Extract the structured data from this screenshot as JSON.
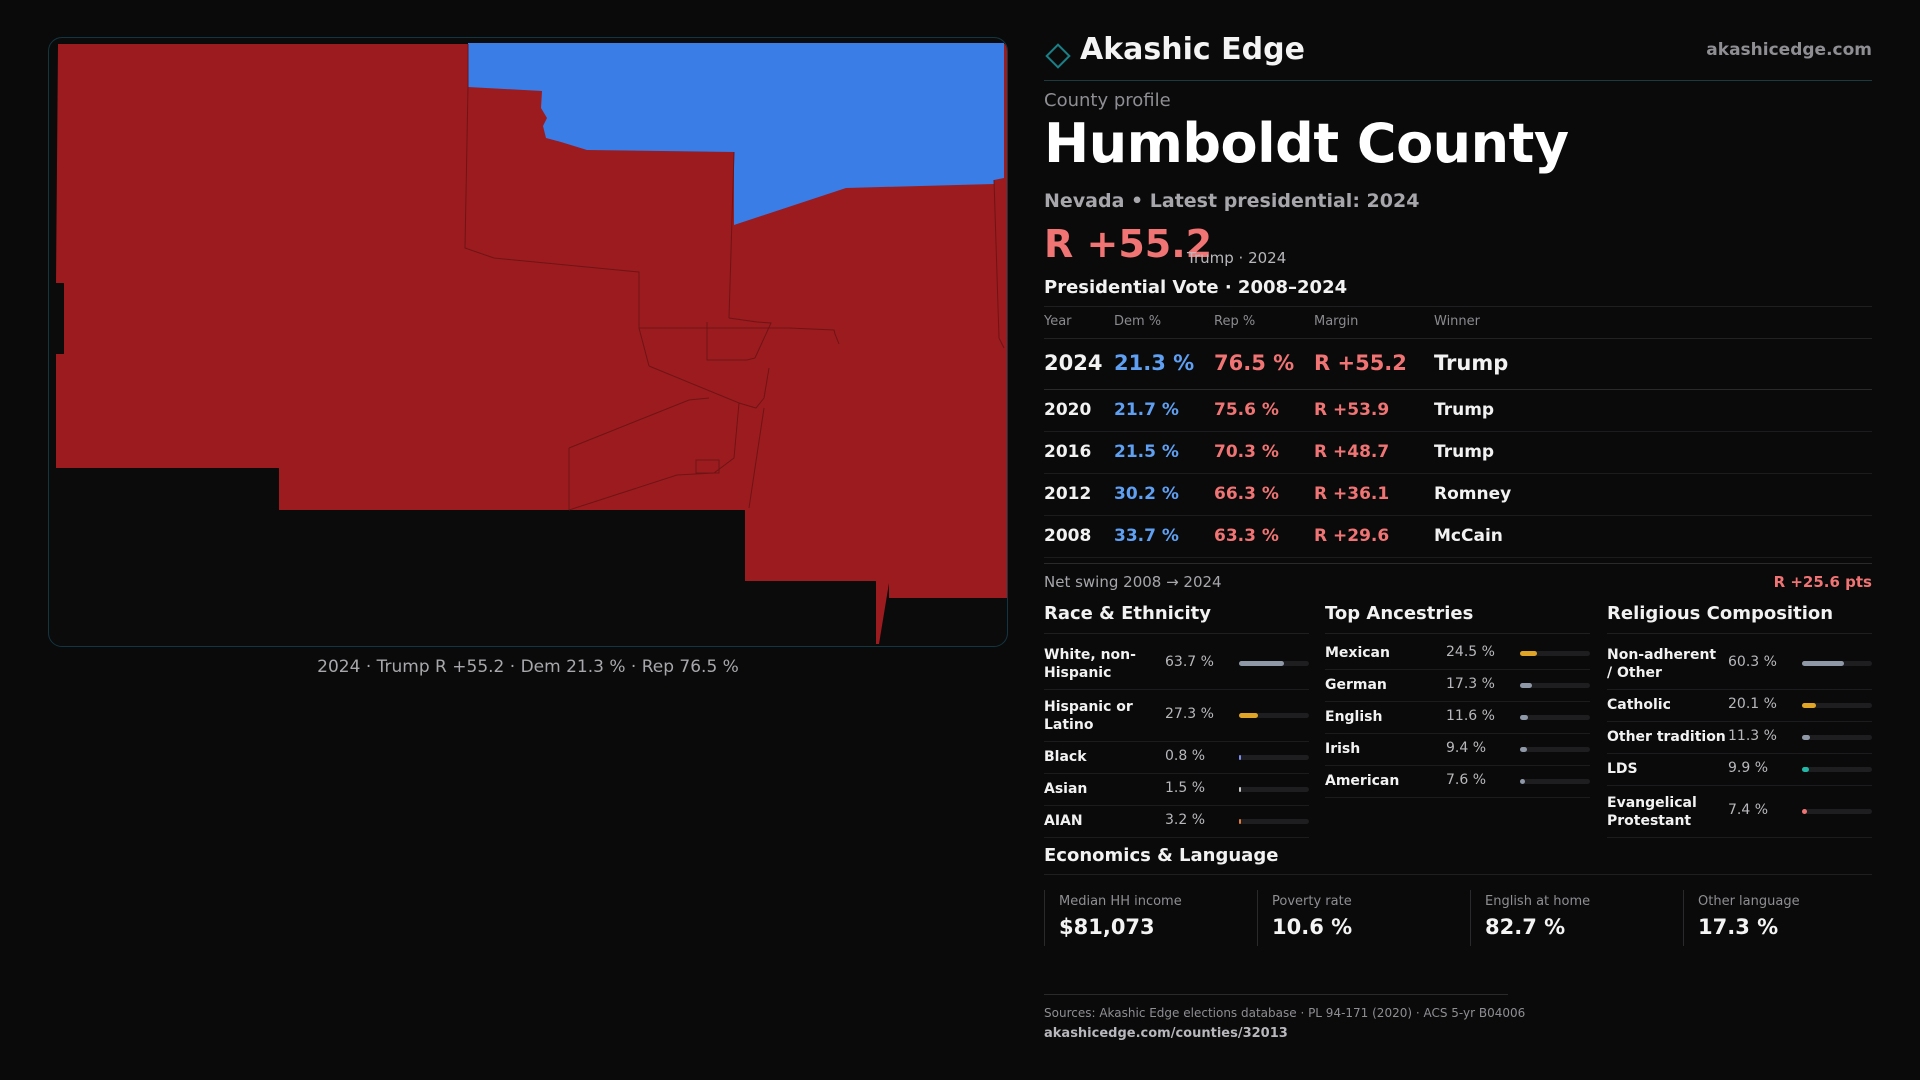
{
  "brand": {
    "name": "Akashic Edge",
    "url": "akashicedge.com",
    "accent": "#1b7f86"
  },
  "map": {
    "caption": "2024 · Trump R +55.2 · Dem 21.3 % · Rep 76.5 %",
    "colors": {
      "rep": "#9c1b1e",
      "dem": "#3a7de6",
      "outside": "#0b0b0c"
    }
  },
  "profile": {
    "eyebrow": "County profile",
    "county": "Humboldt County",
    "state_line": "Nevada • Latest presidential: 2024",
    "margin": "R +55.2",
    "margin_note": "Trump · 2024"
  },
  "vote": {
    "title": "Presidential Vote · 2008–2024",
    "headers": {
      "year": "Year",
      "dem": "Dem %",
      "rep": "Rep %",
      "margin": "Margin",
      "winner": "Winner"
    },
    "rows": [
      {
        "year": "2024",
        "dem": "21.3 %",
        "rep": "76.5 %",
        "margin": "R +55.2",
        "winner": "Trump"
      },
      {
        "year": "2020",
        "dem": "21.7 %",
        "rep": "75.6 %",
        "margin": "R +53.9",
        "winner": "Trump"
      },
      {
        "year": "2016",
        "dem": "21.5 %",
        "rep": "70.3 %",
        "margin": "R +48.7",
        "winner": "Trump"
      },
      {
        "year": "2012",
        "dem": "30.2 %",
        "rep": "66.3 %",
        "margin": "R +36.1",
        "winner": "Romney"
      },
      {
        "year": "2008",
        "dem": "33.7 %",
        "rep": "63.3 %",
        "margin": "R +29.6",
        "winner": "McCain"
      }
    ],
    "swing_label": "Net swing 2008 → 2024",
    "swing_value": "R +25.6 pts"
  },
  "race": {
    "title": "Race & Ethnicity",
    "rows": [
      {
        "label": "White, non-Hispanic",
        "value": "63.7 %",
        "pct": 63.7,
        "color": "#8f98a6"
      },
      {
        "label": "Hispanic or Latino",
        "value": "27.3 %",
        "pct": 27.3,
        "color": "#e0a526"
      },
      {
        "label": "Black",
        "value": "0.8 %",
        "pct": 0.8,
        "color": "#7c8cf0"
      },
      {
        "label": "Asian",
        "value": "1.5 %",
        "pct": 1.5,
        "color": "#c9c9cc"
      },
      {
        "label": "AIAN",
        "value": "3.2 %",
        "pct": 3.2,
        "color": "#e07a3c"
      }
    ]
  },
  "ancestry": {
    "title": "Top Ancestries",
    "rows": [
      {
        "label": "Mexican",
        "value": "24.5 %",
        "pct": 24.5,
        "color": "#e0a526"
      },
      {
        "label": "German",
        "value": "17.3 %",
        "pct": 17.3,
        "color": "#8f98a6"
      },
      {
        "label": "English",
        "value": "11.6 %",
        "pct": 11.6,
        "color": "#8f98a6"
      },
      {
        "label": "Irish",
        "value": "9.4 %",
        "pct": 9.4,
        "color": "#8f98a6"
      },
      {
        "label": "American",
        "value": "7.6 %",
        "pct": 7.6,
        "color": "#8f98a6"
      }
    ]
  },
  "religion": {
    "title": "Religious Composition",
    "rows": [
      {
        "label": "Non-adherent / Other",
        "value": "60.3 %",
        "pct": 60.3,
        "color": "#8f98a6"
      },
      {
        "label": "Catholic",
        "value": "20.1 %",
        "pct": 20.1,
        "color": "#e0a526"
      },
      {
        "label": "Other tradition",
        "value": "11.3 %",
        "pct": 11.3,
        "color": "#8f98a6"
      },
      {
        "label": "LDS",
        "value": "9.9 %",
        "pct": 9.9,
        "color": "#22b8a8"
      },
      {
        "label": "Evangelical Protestant",
        "value": "7.4 %",
        "pct": 7.4,
        "color": "#f07474"
      }
    ]
  },
  "economics": {
    "title": "Economics & Language",
    "stats": [
      {
        "label": "Median HH income",
        "value": "$81,073"
      },
      {
        "label": "Poverty rate",
        "value": "10.6 %"
      },
      {
        "label": "English at home",
        "value": "82.7 %"
      },
      {
        "label": "Other language",
        "value": "17.3 %"
      }
    ]
  },
  "footer": {
    "sources": "Sources: Akashic Edge elections database · PL 94-171 (2020) · ACS 5-yr B04006",
    "url": "akashicedge.com/counties/32013"
  }
}
